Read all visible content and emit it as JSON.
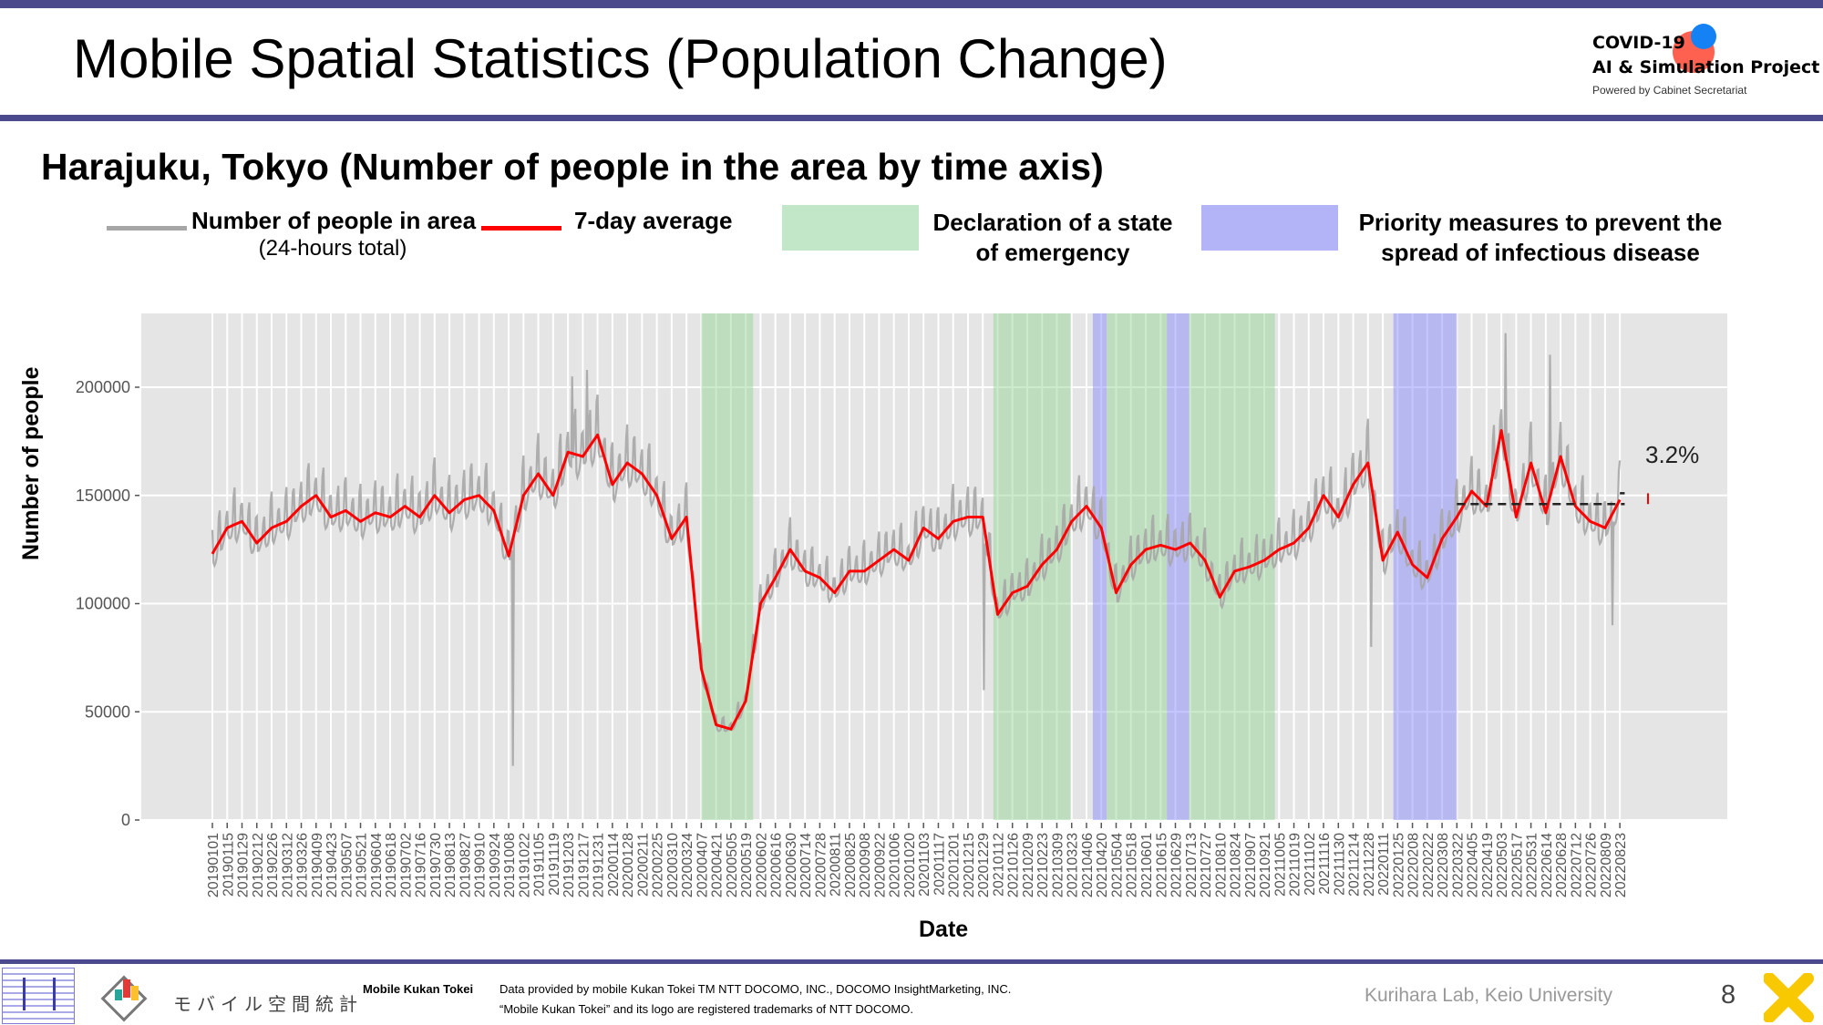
{
  "header": {
    "title": "Mobile Spatial Statistics (Population Change)",
    "logo": {
      "line1": "COVID-19",
      "line2": "AI & Simulation Project",
      "line3": "Powered by Cabinet Secretariat"
    }
  },
  "subtitle": "Harajuku, Tokyo (Number of people in the area by time axis)",
  "legend": {
    "raw_label": "Number of people in area",
    "raw_sub": "(24-hours total)",
    "avg_label": "7-day average",
    "emergency_label_1": "Declaration of a state",
    "emergency_label_2": "of emergency",
    "priority_label_1": "Priority measures to prevent the",
    "priority_label_2": "spread of infectious disease"
  },
  "colors": {
    "raw": "#a6a6a6",
    "avg": "#ff0000",
    "emergency": "#8fd18f",
    "priority": "#8080ff",
    "legend_emergency": "#c2e6c8",
    "legend_priority": "#b3b3f8",
    "accent": "#4b4a8c"
  },
  "chart_data": {
    "type": "line",
    "xlabel": "Date",
    "ylabel": "Number of people",
    "ylim": [
      0,
      234000
    ],
    "yticks": [
      0,
      50000,
      100000,
      150000,
      200000
    ],
    "ytick_labels": [
      "0",
      "50000",
      "100000",
      "150000",
      "200000"
    ],
    "grid": true,
    "x": [
      "20190101",
      "20190115",
      "20190129",
      "20190212",
      "20190226",
      "20190312",
      "20190326",
      "20190409",
      "20190423",
      "20190507",
      "20190521",
      "20190604",
      "20190618",
      "20190702",
      "20190716",
      "20190730",
      "20190813",
      "20190827",
      "20190910",
      "20190924",
      "20191008",
      "20191022",
      "20191105",
      "20191119",
      "20191203",
      "20191217",
      "20191231",
      "20200114",
      "20200128",
      "20200211",
      "20200225",
      "20200310",
      "20200324",
      "20200407",
      "20200421",
      "20200505",
      "20200519",
      "20200602",
      "20200616",
      "20200630",
      "20200714",
      "20200728",
      "20200811",
      "20200825",
      "20200908",
      "20200922",
      "20201006",
      "20201020",
      "20201103",
      "20201117",
      "20201201",
      "20201215",
      "20201229",
      "20210112",
      "20210126",
      "20210209",
      "20210223",
      "20210309",
      "20210323",
      "20210406",
      "20210420",
      "20210504",
      "20210518",
      "20210601",
      "20210615",
      "20210629",
      "20210713",
      "20210727",
      "20210810",
      "20210824",
      "20210907",
      "20210921",
      "20211005",
      "20211019",
      "20211102",
      "20211116",
      "20211130",
      "20211214",
      "20211228",
      "20220111",
      "20220125",
      "20220208",
      "20220222",
      "20220308",
      "20220322",
      "20220405",
      "20220419",
      "20220503",
      "20220517",
      "20220531",
      "20220614",
      "20220628",
      "20220712",
      "20220726",
      "20220809",
      "20220823"
    ],
    "series": [
      {
        "name": "7-day average",
        "values": [
          123000,
          135000,
          138000,
          128000,
          135000,
          138000,
          145000,
          150000,
          140000,
          143000,
          138000,
          142000,
          140000,
          145000,
          140000,
          150000,
          142000,
          148000,
          150000,
          143000,
          122000,
          150000,
          160000,
          150000,
          170000,
          168000,
          178000,
          155000,
          165000,
          160000,
          150000,
          130000,
          140000,
          70000,
          44000,
          42000,
          55000,
          100000,
          112000,
          125000,
          115000,
          112000,
          105000,
          115000,
          115000,
          120000,
          125000,
          120000,
          135000,
          130000,
          138000,
          140000,
          140000,
          95000,
          105000,
          108000,
          118000,
          125000,
          138000,
          145000,
          135000,
          105000,
          118000,
          125000,
          127000,
          125000,
          128000,
          120000,
          103000,
          115000,
          117000,
          120000,
          125000,
          128000,
          135000,
          150000,
          140000,
          155000,
          165000,
          120000,
          133000,
          118000,
          112000,
          130000,
          140000,
          152000,
          145000,
          180000,
          140000,
          165000,
          142000,
          168000,
          145000,
          138000,
          135000,
          148000
        ]
      },
      {
        "name": "Number of people in area (24-hours total)",
        "weekly_amplitude": 0.1,
        "spikes": [
          {
            "date": "20191012",
            "value": 25000
          },
          {
            "date": "20191207",
            "value": 205000
          },
          {
            "date": "20191221",
            "value": 208000
          },
          {
            "date": "20201230",
            "value": 60000
          },
          {
            "date": "20211231",
            "value": 80000
          },
          {
            "date": "20220507",
            "value": 225000
          },
          {
            "date": "20220618",
            "value": 215000
          },
          {
            "date": "20220816",
            "value": 90000
          }
        ]
      }
    ],
    "periods": {
      "emergency": [
        [
          "20200407",
          "20200525"
        ],
        [
          "20210108",
          "20210321"
        ],
        [
          "20210425",
          "20210620"
        ],
        [
          "20210712",
          "20210930"
        ]
      ],
      "priority": [
        [
          "20210412",
          "20210424"
        ],
        [
          "20210621",
          "20210711"
        ],
        [
          "20220121",
          "20220321"
        ]
      ]
    },
    "reference_lines": [
      {
        "from": "20220322",
        "to": "20221001",
        "value": 146000
      },
      {
        "from": "20220823",
        "to": "20221001",
        "value": 151000
      }
    ],
    "annotation": "3.2%"
  },
  "footer": {
    "mkt_logo_text": "モバイル空間統計",
    "brand": "Mobile Kukan Tokei",
    "credit1": "Data provided by mobile Kukan Tokei TM NTT DOCOMO, INC., DOCOMO InsightMarketing, INC.",
    "credit2": "“Mobile Kukan Tokei” and its logo are registered trademarks of NTT DOCOMO.",
    "lab": "Kurihara Lab, Keio University",
    "page": "8"
  }
}
